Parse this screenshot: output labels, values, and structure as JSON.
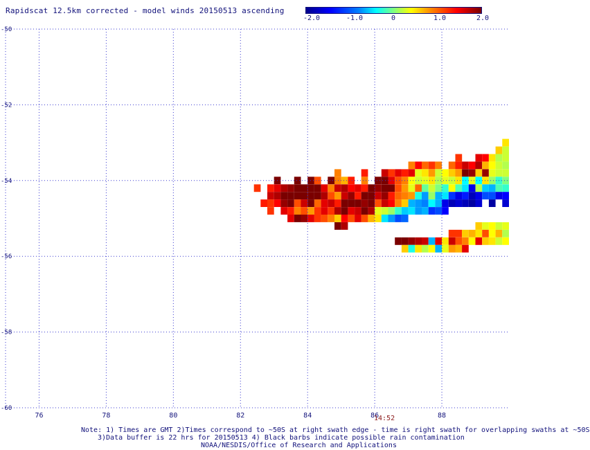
{
  "title": "Rapidscat 12.5km corrected - model winds 20150513 ascending",
  "colorbar": {
    "tick_labels": [
      "-2.0",
      "-1.0",
      "0",
      "1.0",
      "2.0"
    ],
    "range": [
      -2.0,
      2.0
    ],
    "colormap": [
      "#00008b",
      "#0000ff",
      "#0080ff",
      "#00ffff",
      "#80ff80",
      "#ffff00",
      "#ff8000",
      "#ff0000",
      "#7a0000"
    ]
  },
  "map": {
    "lon_range": [
      75,
      90
    ],
    "lat_range": [
      -60,
      -50
    ],
    "lon_ticks": [
      "76",
      "78",
      "80",
      "82",
      "84",
      "86",
      "88"
    ],
    "lat_ticks": [
      "-50",
      "-52",
      "-54",
      "-56",
      "-58",
      "-60"
    ],
    "grid": "dotted",
    "grid_color": "#3a3ad0",
    "time_label": "14:52"
  },
  "chart_data": {
    "type": "heatmap",
    "title": "Rapidscat 12.5km corrected - model winds 20150513 ascending",
    "x_axis": "longitude",
    "y_axis": "latitude",
    "cell_deg": [
      0.2,
      0.2
    ],
    "rows": [
      {
        "lat": -53.0,
        "cells": [
          [
            89.8,
            0.6
          ]
        ]
      },
      {
        "lat": -53.2,
        "cells": [
          [
            89.6,
            0.7
          ],
          [
            89.8,
            0.3
          ]
        ]
      },
      {
        "lat": -53.4,
        "cells": [
          [
            88.4,
            1.3
          ],
          [
            89.0,
            1.6
          ],
          [
            89.2,
            1.5
          ],
          [
            89.4,
            0.6
          ],
          [
            89.6,
            0.2
          ],
          [
            89.8,
            0.3
          ]
        ]
      },
      {
        "lat": -53.6,
        "cells": [
          [
            87.0,
            1.0
          ],
          [
            87.2,
            1.5
          ],
          [
            87.4,
            1.1
          ],
          [
            87.6,
            1.3
          ],
          [
            87.8,
            1.0
          ],
          [
            88.2,
            1.1
          ],
          [
            88.4,
            1.4
          ],
          [
            88.6,
            1.7
          ],
          [
            88.8,
            1.5
          ],
          [
            89.0,
            1.8
          ],
          [
            89.2,
            0.8
          ],
          [
            89.4,
            0.5
          ],
          [
            89.6,
            0.3
          ],
          [
            89.8,
            0.2
          ]
        ]
      },
      {
        "lat": -53.8,
        "cells": [
          [
            84.8,
            1.0
          ],
          [
            85.6,
            1.4
          ],
          [
            86.2,
            1.7
          ],
          [
            86.4,
            1.3
          ],
          [
            86.6,
            1.6
          ],
          [
            86.8,
            1.4
          ],
          [
            87.0,
            1.6
          ],
          [
            87.2,
            0.4
          ],
          [
            87.4,
            0.6
          ],
          [
            87.6,
            0.9
          ],
          [
            87.8,
            0.3
          ],
          [
            88.0,
            0.5
          ],
          [
            88.2,
            0.7
          ],
          [
            88.4,
            0.9
          ],
          [
            88.6,
            2.0
          ],
          [
            88.8,
            1.9
          ],
          [
            89.0,
            0.7
          ],
          [
            89.2,
            1.9
          ],
          [
            89.4,
            0.4
          ],
          [
            89.6,
            0.3
          ],
          [
            89.8,
            0.3
          ]
        ]
      },
      {
        "lat": -54.0,
        "cells": [
          [
            83.0,
            2.0
          ],
          [
            83.6,
            2.0
          ],
          [
            84.0,
            2.0
          ],
          [
            84.2,
            1.2
          ],
          [
            84.6,
            2.0
          ],
          [
            84.8,
            1.0
          ],
          [
            85.0,
            0.8
          ],
          [
            85.2,
            1.4
          ],
          [
            85.6,
            1.0
          ],
          [
            86.0,
            2.0
          ],
          [
            86.2,
            2.0
          ],
          [
            86.4,
            1.6
          ],
          [
            86.6,
            1.2
          ],
          [
            86.8,
            1.0
          ],
          [
            87.0,
            0.5
          ],
          [
            87.2,
            0.3
          ],
          [
            87.4,
            0.4
          ],
          [
            87.6,
            0.6
          ],
          [
            87.8,
            0.2
          ],
          [
            88.0,
            0.4
          ],
          [
            88.2,
            0.3
          ],
          [
            88.4,
            0.6
          ],
          [
            88.6,
            -0.5
          ],
          [
            88.8,
            0.4
          ],
          [
            89.0,
            -0.5
          ],
          [
            89.2,
            0.6
          ],
          [
            89.4,
            0.1
          ],
          [
            89.6,
            -0.3
          ],
          [
            89.8,
            0.0
          ]
        ]
      },
      {
        "lat": -54.2,
        "cells": [
          [
            82.4,
            1.3
          ],
          [
            82.8,
            1.4
          ],
          [
            83.0,
            1.6
          ],
          [
            83.2,
            1.8
          ],
          [
            83.4,
            1.9
          ],
          [
            83.6,
            2.0
          ],
          [
            83.8,
            2.0
          ],
          [
            84.0,
            2.0
          ],
          [
            84.2,
            2.0
          ],
          [
            84.4,
            1.6
          ],
          [
            84.6,
            1.0
          ],
          [
            84.8,
            1.7
          ],
          [
            85.0,
            1.8
          ],
          [
            85.2,
            1.5
          ],
          [
            85.4,
            1.6
          ],
          [
            85.6,
            1.4
          ],
          [
            85.8,
            2.0
          ],
          [
            86.0,
            1.9
          ],
          [
            86.2,
            2.0
          ],
          [
            86.4,
            2.0
          ],
          [
            86.6,
            1.2
          ],
          [
            86.8,
            0.9
          ],
          [
            87.0,
            0.4
          ],
          [
            87.2,
            1.1
          ],
          [
            87.4,
            -0.1
          ],
          [
            87.6,
            0.3
          ],
          [
            87.8,
            0.0
          ],
          [
            88.0,
            -0.3
          ],
          [
            88.2,
            0.5
          ],
          [
            88.4,
            -0.2
          ],
          [
            88.6,
            -0.6
          ],
          [
            88.8,
            -1.6
          ],
          [
            89.0,
            0.2
          ],
          [
            89.2,
            -0.7
          ],
          [
            89.4,
            -0.8
          ],
          [
            89.6,
            -0.2
          ],
          [
            89.8,
            -0.3
          ]
        ]
      },
      {
        "lat": -54.4,
        "cells": [
          [
            82.8,
            1.7
          ],
          [
            83.0,
            1.8
          ],
          [
            83.2,
            2.0
          ],
          [
            83.4,
            2.0
          ],
          [
            83.6,
            2.0
          ],
          [
            83.8,
            2.0
          ],
          [
            84.0,
            2.0
          ],
          [
            84.2,
            2.0
          ],
          [
            84.4,
            1.8
          ],
          [
            84.6,
            1.2
          ],
          [
            84.8,
            0.9
          ],
          [
            85.0,
            1.7
          ],
          [
            85.2,
            1.9
          ],
          [
            85.4,
            1.4
          ],
          [
            85.6,
            2.0
          ],
          [
            85.8,
            2.0
          ],
          [
            86.0,
            1.7
          ],
          [
            86.2,
            1.9
          ],
          [
            86.4,
            1.4
          ],
          [
            86.6,
            1.1
          ],
          [
            86.8,
            1.0
          ],
          [
            87.0,
            0.9
          ],
          [
            87.2,
            -0.4
          ],
          [
            87.4,
            -0.9
          ],
          [
            87.6,
            0.1
          ],
          [
            87.8,
            -0.8
          ],
          [
            88.0,
            -0.6
          ],
          [
            88.2,
            -1.3
          ],
          [
            88.4,
            -1.6
          ],
          [
            88.6,
            -1.4
          ],
          [
            88.8,
            -1.8
          ],
          [
            89.0,
            -1.6
          ],
          [
            89.2,
            -1.2
          ],
          [
            89.4,
            -1.2
          ],
          [
            89.6,
            -1.6
          ],
          [
            89.8,
            -1.5
          ]
        ]
      },
      {
        "lat": -54.6,
        "cells": [
          [
            82.6,
            1.4
          ],
          [
            82.8,
            1.3
          ],
          [
            83.0,
            1.5
          ],
          [
            83.2,
            1.9
          ],
          [
            83.4,
            2.0
          ],
          [
            83.6,
            1.2
          ],
          [
            83.8,
            1.7
          ],
          [
            84.0,
            2.0
          ],
          [
            84.2,
            1.1
          ],
          [
            84.4,
            1.6
          ],
          [
            84.6,
            1.7
          ],
          [
            84.8,
            1.4
          ],
          [
            85.0,
            2.0
          ],
          [
            85.2,
            2.0
          ],
          [
            85.4,
            2.0
          ],
          [
            85.6,
            1.9
          ],
          [
            85.8,
            2.0
          ],
          [
            86.0,
            1.2
          ],
          [
            86.2,
            1.7
          ],
          [
            86.4,
            1.5
          ],
          [
            86.6,
            1.0
          ],
          [
            86.8,
            0.7
          ],
          [
            87.0,
            -0.8
          ],
          [
            87.2,
            -0.9
          ],
          [
            87.4,
            -1.0
          ],
          [
            87.6,
            -0.5
          ],
          [
            87.8,
            -0.8
          ],
          [
            88.0,
            -1.6
          ],
          [
            88.2,
            -1.8
          ],
          [
            88.4,
            -1.7
          ],
          [
            88.6,
            -1.8
          ],
          [
            88.8,
            -1.9
          ],
          [
            89.0,
            -1.7
          ],
          [
            89.4,
            -1.9
          ],
          [
            89.8,
            -1.7
          ]
        ]
      },
      {
        "lat": -54.8,
        "cells": [
          [
            82.8,
            1.3
          ],
          [
            83.2,
            1.6
          ],
          [
            83.4,
            1.4
          ],
          [
            83.6,
            1.0
          ],
          [
            83.8,
            1.2
          ],
          [
            84.0,
            0.9
          ],
          [
            84.2,
            1.3
          ],
          [
            84.4,
            1.6
          ],
          [
            84.6,
            1.3
          ],
          [
            84.8,
            1.8
          ],
          [
            85.0,
            2.0
          ],
          [
            85.2,
            1.6
          ],
          [
            85.4,
            1.7
          ],
          [
            85.6,
            2.0
          ],
          [
            85.8,
            1.8
          ],
          [
            86.0,
            0.4
          ],
          [
            86.2,
            0.3
          ],
          [
            86.4,
            0.1
          ],
          [
            86.6,
            -0.3
          ],
          [
            86.8,
            -0.7
          ],
          [
            87.0,
            -0.6
          ],
          [
            87.2,
            -0.9
          ],
          [
            87.4,
            -0.8
          ],
          [
            87.6,
            -1.3
          ],
          [
            87.8,
            -1.2
          ],
          [
            88.0,
            -1.5
          ]
        ]
      },
      {
        "lat": -55.0,
        "cells": [
          [
            83.4,
            1.6
          ],
          [
            83.6,
            2.0
          ],
          [
            83.8,
            1.9
          ],
          [
            84.0,
            1.6
          ],
          [
            84.2,
            1.3
          ],
          [
            84.4,
            1.2
          ],
          [
            84.6,
            1.0
          ],
          [
            84.8,
            0.7
          ],
          [
            85.0,
            1.5
          ],
          [
            85.2,
            1.2
          ],
          [
            85.4,
            1.6
          ],
          [
            85.6,
            1.2
          ],
          [
            85.8,
            0.8
          ],
          [
            86.0,
            0.6
          ],
          [
            86.2,
            -0.6
          ],
          [
            86.4,
            -0.9
          ],
          [
            86.6,
            -1.2
          ],
          [
            86.8,
            -1.1
          ]
        ]
      },
      {
        "lat": -55.2,
        "cells": [
          [
            84.8,
            2.0
          ],
          [
            85.0,
            1.8
          ],
          [
            89.0,
            0.7
          ],
          [
            89.2,
            0.4
          ],
          [
            89.4,
            0.5
          ],
          [
            89.6,
            0.3
          ],
          [
            89.8,
            0.4
          ]
        ]
      },
      {
        "lat": -55.4,
        "cells": [
          [
            88.2,
            1.3
          ],
          [
            88.4,
            1.3
          ],
          [
            88.6,
            0.7
          ],
          [
            88.8,
            0.8
          ],
          [
            89.0,
            0.6
          ],
          [
            89.2,
            1.2
          ],
          [
            89.4,
            0.5
          ],
          [
            89.6,
            0.8
          ],
          [
            89.8,
            0.2
          ]
        ]
      },
      {
        "lat": -55.6,
        "cells": [
          [
            86.6,
            2.0
          ],
          [
            86.8,
            2.0
          ],
          [
            87.0,
            1.9
          ],
          [
            87.2,
            1.8
          ],
          [
            87.4,
            1.7
          ],
          [
            87.6,
            -0.8
          ],
          [
            87.8,
            1.6
          ],
          [
            88.0,
            0.6
          ],
          [
            88.2,
            1.7
          ],
          [
            88.4,
            1.2
          ],
          [
            88.6,
            1.0
          ],
          [
            88.8,
            0.5
          ],
          [
            89.0,
            1.6
          ],
          [
            89.2,
            0.7
          ],
          [
            89.4,
            0.6
          ],
          [
            89.6,
            0.3
          ],
          [
            89.8,
            0.5
          ]
        ]
      },
      {
        "lat": -55.8,
        "cells": [
          [
            86.8,
            0.7
          ],
          [
            87.0,
            -0.4
          ],
          [
            87.2,
            0.6
          ],
          [
            87.4,
            0.2
          ],
          [
            87.6,
            0.5
          ],
          [
            87.8,
            -0.8
          ],
          [
            88.0,
            0.4
          ],
          [
            88.2,
            0.9
          ],
          [
            88.4,
            0.8
          ],
          [
            88.6,
            1.6
          ]
        ]
      },
      {
        "lat": -54.0,
        "cells": []
      }
    ]
  },
  "notes": [
    "Note: 1) Times are GMT 2)Times correspond to ~50S at right swath edge - time is right swath for overlapping swaths at ~50S",
    "3)Data buffer is 22 hrs for 20150513 4) Black barbs indicate possible rain contamination",
    "NOAA/NESDIS/Office of Research and Applications"
  ]
}
